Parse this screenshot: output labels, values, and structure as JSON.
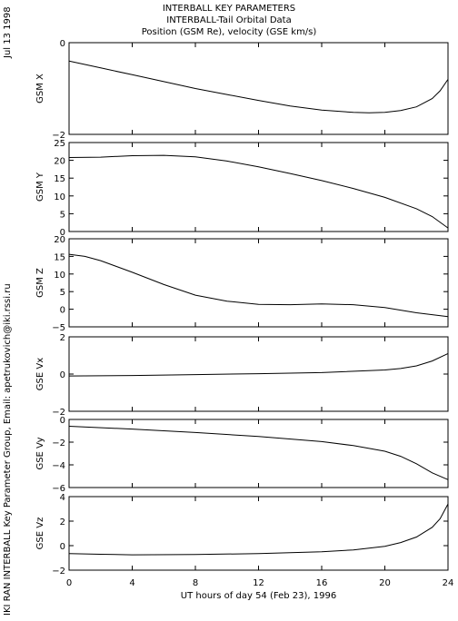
{
  "header": {
    "line1": "INTERBALL KEY PARAMETERS",
    "line2": "INTERBALL-Tail Orbital Data",
    "line3": "Position (GSM Re), velocity (GSE km/s)"
  },
  "side": {
    "date": "Jul 13 1998",
    "credit": "IKI RAN INTERBALL Key Parameter Group, Email: apetrukovich@iki.rssi.ru"
  },
  "chart_data": {
    "type": "line",
    "xlabel": "UT hours of day  54 (Feb 23), 1996",
    "xlim": [
      0,
      24
    ],
    "xticks": [
      0,
      4,
      8,
      12,
      16,
      20,
      24
    ],
    "panels": [
      {
        "ylabel": "GSM X",
        "ylim": [
          -2,
          0
        ],
        "yticks": [
          -2,
          0
        ],
        "series": [
          {
            "x": [
              0,
              2,
              4,
              6,
              8,
              10,
              12,
              14,
              16,
              18,
              19,
              20,
              21,
              22,
              23,
              23.5,
              24
            ],
            "y": [
              -0.4,
              -0.55,
              -0.7,
              -0.85,
              -1.0,
              -1.13,
              -1.26,
              -1.38,
              -1.47,
              -1.52,
              -1.53,
              -1.52,
              -1.48,
              -1.4,
              -1.22,
              -1.05,
              -0.8
            ]
          }
        ]
      },
      {
        "ylabel": "GSM Y",
        "ylim": [
          0,
          25
        ],
        "yticks": [
          0,
          5,
          10,
          15,
          20,
          25
        ],
        "series": [
          {
            "x": [
              0,
              2,
              4,
              6,
              8,
              10,
              12,
              14,
              16,
              18,
              20,
              22,
              23,
              24
            ],
            "y": [
              20.8,
              20.9,
              21.3,
              21.4,
              21.0,
              19.8,
              18.2,
              16.3,
              14.3,
              12.1,
              9.6,
              6.4,
              4.2,
              1.0
            ]
          }
        ]
      },
      {
        "ylabel": "GSM Z",
        "ylim": [
          -5,
          20
        ],
        "yticks": [
          -5,
          0,
          5,
          10,
          15,
          20
        ],
        "series": [
          {
            "x": [
              0,
              1,
              2,
              4,
              6,
              8,
              10,
              12,
              14,
              16,
              18,
              20,
              22,
              24
            ],
            "y": [
              15.6,
              15.0,
              13.8,
              10.5,
              7.0,
              4.0,
              2.3,
              1.4,
              1.3,
              1.5,
              1.3,
              0.5,
              -1.0,
              -2.1
            ]
          }
        ]
      },
      {
        "ylabel": "GSE Vx",
        "ylim": [
          -2,
          2
        ],
        "yticks": [
          -2,
          0,
          2
        ],
        "series": [
          {
            "x": [
              0,
              4,
              8,
              12,
              16,
              20,
              21,
              22,
              23,
              24
            ],
            "y": [
              -0.1,
              -0.08,
              -0.03,
              0.02,
              0.08,
              0.22,
              0.3,
              0.44,
              0.7,
              1.1
            ]
          }
        ]
      },
      {
        "ylabel": "GSE Vy",
        "ylim": [
          -6,
          0
        ],
        "yticks": [
          -6,
          -4,
          -2,
          0
        ],
        "series": [
          {
            "x": [
              0,
              4,
              8,
              12,
              16,
              18,
              20,
              21,
              22,
              23,
              24
            ],
            "y": [
              -0.6,
              -0.85,
              -1.15,
              -1.5,
              -1.95,
              -2.3,
              -2.8,
              -3.25,
              -3.9,
              -4.7,
              -5.3
            ]
          }
        ]
      },
      {
        "ylabel": "GSE Vz",
        "ylim": [
          -2,
          4
        ],
        "yticks": [
          -2,
          0,
          2,
          4
        ],
        "series": [
          {
            "x": [
              0,
              2,
              4,
              8,
              12,
              16,
              18,
              20,
              21,
              22,
              23,
              23.5,
              24
            ],
            "y": [
              -0.65,
              -0.7,
              -0.75,
              -0.72,
              -0.65,
              -0.5,
              -0.35,
              -0.05,
              0.25,
              0.7,
              1.5,
              2.2,
              3.4
            ]
          }
        ]
      }
    ]
  }
}
